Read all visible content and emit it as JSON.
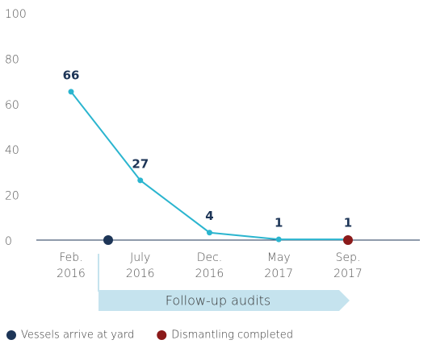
{
  "chart_data": {
    "type": "line",
    "categories": [
      [
        "Feb.",
        "2016"
      ],
      [
        "July",
        "2016"
      ],
      [
        "Dec.",
        "2016"
      ],
      [
        "May",
        "2017"
      ],
      [
        "Sep.",
        "2017"
      ]
    ],
    "values": [
      66,
      27,
      4,
      1,
      1
    ],
    "color": "#2bb5cf",
    "ylim": [
      0,
      100
    ],
    "yticks": [
      0,
      20,
      40,
      60,
      80,
      100
    ],
    "band_label": "Follow-up audits",
    "legend": [
      {
        "name": "Vessels arrive at yard",
        "color": "#1d3557"
      },
      {
        "name": "Dismantling completed",
        "color": "#8b1a1a"
      }
    ]
  }
}
